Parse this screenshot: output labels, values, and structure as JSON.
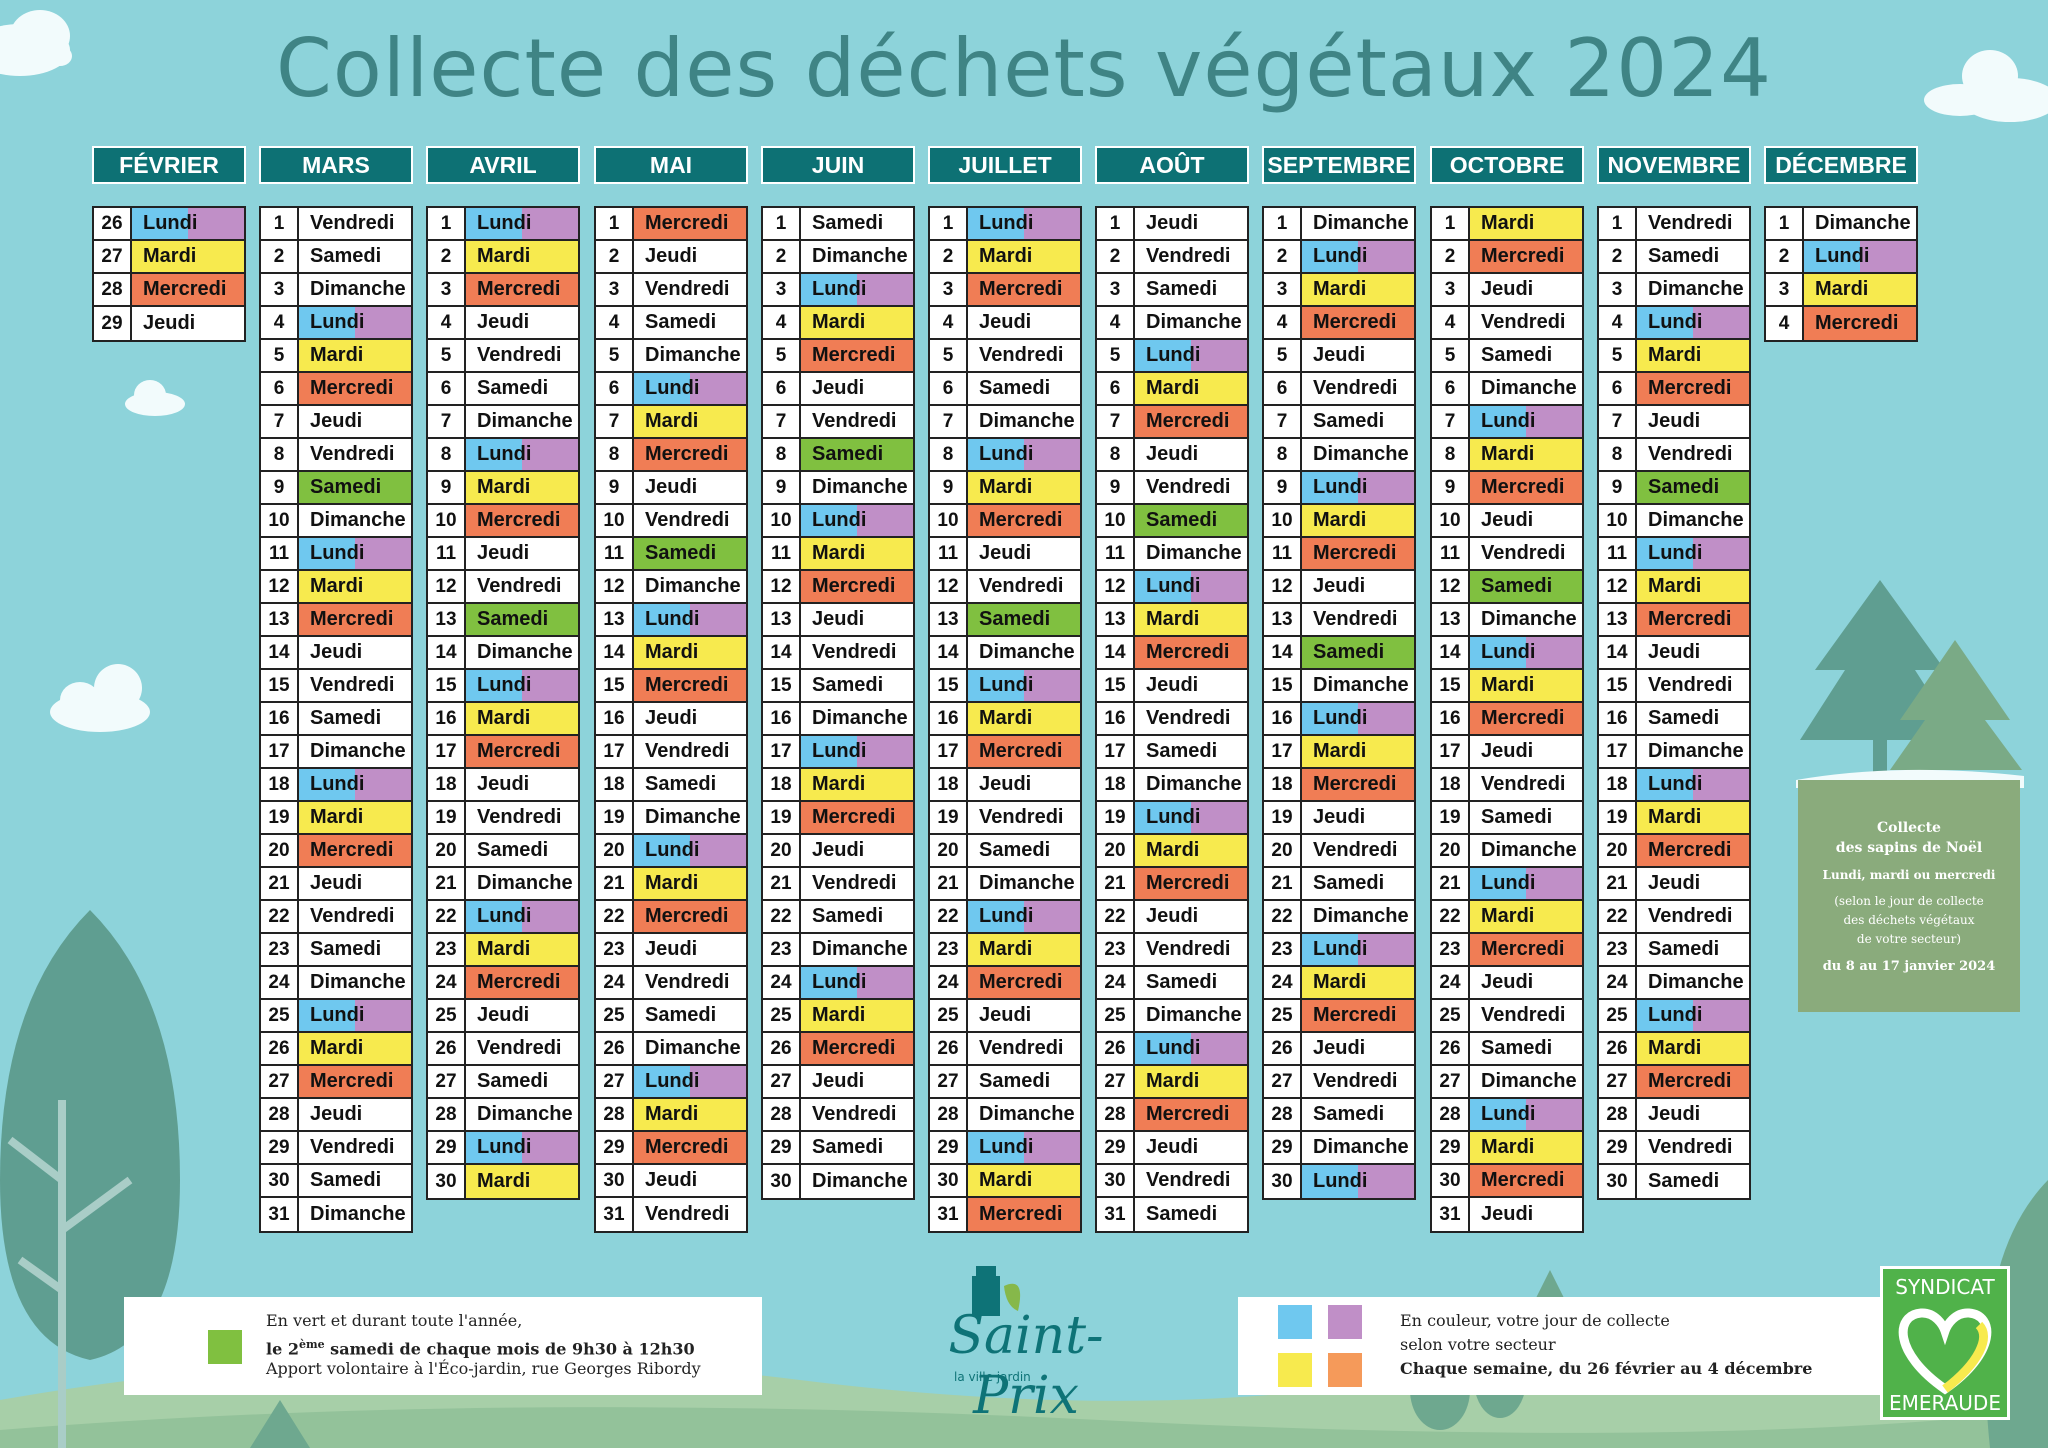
{
  "title": "Collecte des déchets végétaux 2024",
  "colors": {
    "background": "#8dd3da",
    "header": "#0d7174",
    "lundi_left": "#6fc8ef",
    "lundi_right": "#c08fc7",
    "mardi": "#f7ea4e",
    "mercredi": "#f07d55",
    "samedi": "#80c040"
  },
  "months": [
    {
      "name": "FÉVRIER",
      "days": [
        [
          26,
          "Lundi"
        ],
        [
          27,
          "Mardi"
        ],
        [
          28,
          "Mercredi"
        ],
        [
          29,
          "Jeudi"
        ]
      ]
    },
    {
      "name": "MARS",
      "days": [
        [
          1,
          "Vendredi"
        ],
        [
          2,
          "Samedi"
        ],
        [
          3,
          "Dimanche"
        ],
        [
          4,
          "Lundi"
        ],
        [
          5,
          "Mardi"
        ],
        [
          6,
          "Mercredi"
        ],
        [
          7,
          "Jeudi"
        ],
        [
          8,
          "Vendredi"
        ],
        [
          9,
          "Samedi",
          "green"
        ],
        [
          10,
          "Dimanche"
        ],
        [
          11,
          "Lundi"
        ],
        [
          12,
          "Mardi"
        ],
        [
          13,
          "Mercredi"
        ],
        [
          14,
          "Jeudi"
        ],
        [
          15,
          "Vendredi"
        ],
        [
          16,
          "Samedi"
        ],
        [
          17,
          "Dimanche"
        ],
        [
          18,
          "Lundi"
        ],
        [
          19,
          "Mardi"
        ],
        [
          20,
          "Mercredi"
        ],
        [
          21,
          "Jeudi"
        ],
        [
          22,
          "Vendredi"
        ],
        [
          23,
          "Samedi"
        ],
        [
          24,
          "Dimanche"
        ],
        [
          25,
          "Lundi"
        ],
        [
          26,
          "Mardi"
        ],
        [
          27,
          "Mercredi"
        ],
        [
          28,
          "Jeudi"
        ],
        [
          29,
          "Vendredi"
        ],
        [
          30,
          "Samedi"
        ],
        [
          31,
          "Dimanche"
        ]
      ]
    },
    {
      "name": "AVRIL",
      "days": [
        [
          1,
          "Lundi"
        ],
        [
          2,
          "Mardi"
        ],
        [
          3,
          "Mercredi"
        ],
        [
          4,
          "Jeudi"
        ],
        [
          5,
          "Vendredi"
        ],
        [
          6,
          "Samedi"
        ],
        [
          7,
          "Dimanche"
        ],
        [
          8,
          "Lundi"
        ],
        [
          9,
          "Mardi"
        ],
        [
          10,
          "Mercredi"
        ],
        [
          11,
          "Jeudi"
        ],
        [
          12,
          "Vendredi"
        ],
        [
          13,
          "Samedi",
          "green"
        ],
        [
          14,
          "Dimanche"
        ],
        [
          15,
          "Lundi"
        ],
        [
          16,
          "Mardi"
        ],
        [
          17,
          "Mercredi"
        ],
        [
          18,
          "Jeudi"
        ],
        [
          19,
          "Vendredi"
        ],
        [
          20,
          "Samedi"
        ],
        [
          21,
          "Dimanche"
        ],
        [
          22,
          "Lundi"
        ],
        [
          23,
          "Mardi"
        ],
        [
          24,
          "Mercredi"
        ],
        [
          25,
          "Jeudi"
        ],
        [
          26,
          "Vendredi"
        ],
        [
          27,
          "Samedi"
        ],
        [
          28,
          "Dimanche"
        ],
        [
          29,
          "Lundi"
        ],
        [
          30,
          "Mardi"
        ]
      ]
    },
    {
      "name": "MAI",
      "days": [
        [
          1,
          "Mercredi"
        ],
        [
          2,
          "Jeudi"
        ],
        [
          3,
          "Vendredi"
        ],
        [
          4,
          "Samedi"
        ],
        [
          5,
          "Dimanche"
        ],
        [
          6,
          "Lundi"
        ],
        [
          7,
          "Mardi"
        ],
        [
          8,
          "Mercredi"
        ],
        [
          9,
          "Jeudi"
        ],
        [
          10,
          "Vendredi"
        ],
        [
          11,
          "Samedi",
          "green"
        ],
        [
          12,
          "Dimanche"
        ],
        [
          13,
          "Lundi"
        ],
        [
          14,
          "Mardi"
        ],
        [
          15,
          "Mercredi"
        ],
        [
          16,
          "Jeudi"
        ],
        [
          17,
          "Vendredi"
        ],
        [
          18,
          "Samedi"
        ],
        [
          19,
          "Dimanche"
        ],
        [
          20,
          "Lundi"
        ],
        [
          21,
          "Mardi"
        ],
        [
          22,
          "Mercredi"
        ],
        [
          23,
          "Jeudi"
        ],
        [
          24,
          "Vendredi"
        ],
        [
          25,
          "Samedi"
        ],
        [
          26,
          "Dimanche"
        ],
        [
          27,
          "Lundi"
        ],
        [
          28,
          "Mardi"
        ],
        [
          29,
          "Mercredi"
        ],
        [
          30,
          "Jeudi"
        ],
        [
          31,
          "Vendredi"
        ]
      ]
    },
    {
      "name": "JUIN",
      "days": [
        [
          1,
          "Samedi"
        ],
        [
          2,
          "Dimanche"
        ],
        [
          3,
          "Lundi"
        ],
        [
          4,
          "Mardi"
        ],
        [
          5,
          "Mercredi"
        ],
        [
          6,
          "Jeudi"
        ],
        [
          7,
          "Vendredi"
        ],
        [
          8,
          "Samedi",
          "green"
        ],
        [
          9,
          "Dimanche"
        ],
        [
          10,
          "Lundi"
        ],
        [
          11,
          "Mardi"
        ],
        [
          12,
          "Mercredi"
        ],
        [
          13,
          "Jeudi"
        ],
        [
          14,
          "Vendredi"
        ],
        [
          15,
          "Samedi"
        ],
        [
          16,
          "Dimanche"
        ],
        [
          17,
          "Lundi"
        ],
        [
          18,
          "Mardi"
        ],
        [
          19,
          "Mercredi"
        ],
        [
          20,
          "Jeudi"
        ],
        [
          21,
          "Vendredi"
        ],
        [
          22,
          "Samedi"
        ],
        [
          23,
          "Dimanche"
        ],
        [
          24,
          "Lundi"
        ],
        [
          25,
          "Mardi"
        ],
        [
          26,
          "Mercredi"
        ],
        [
          27,
          "Jeudi"
        ],
        [
          28,
          "Vendredi"
        ],
        [
          29,
          "Samedi"
        ],
        [
          30,
          "Dimanche"
        ]
      ]
    },
    {
      "name": "JUILLET",
      "days": [
        [
          1,
          "Lundi"
        ],
        [
          2,
          "Mardi"
        ],
        [
          3,
          "Mercredi"
        ],
        [
          4,
          "Jeudi"
        ],
        [
          5,
          "Vendredi"
        ],
        [
          6,
          "Samedi"
        ],
        [
          7,
          "Dimanche"
        ],
        [
          8,
          "Lundi"
        ],
        [
          9,
          "Mardi"
        ],
        [
          10,
          "Mercredi"
        ],
        [
          11,
          "Jeudi"
        ],
        [
          12,
          "Vendredi"
        ],
        [
          13,
          "Samedi",
          "green"
        ],
        [
          14,
          "Dimanche"
        ],
        [
          15,
          "Lundi"
        ],
        [
          16,
          "Mardi"
        ],
        [
          17,
          "Mercredi"
        ],
        [
          18,
          "Jeudi"
        ],
        [
          19,
          "Vendredi"
        ],
        [
          20,
          "Samedi"
        ],
        [
          21,
          "Dimanche"
        ],
        [
          22,
          "Lundi"
        ],
        [
          23,
          "Mardi"
        ],
        [
          24,
          "Mercredi"
        ],
        [
          25,
          "Jeudi"
        ],
        [
          26,
          "Vendredi"
        ],
        [
          27,
          "Samedi"
        ],
        [
          28,
          "Dimanche"
        ],
        [
          29,
          "Lundi"
        ],
        [
          30,
          "Mardi"
        ],
        [
          31,
          "Mercredi"
        ]
      ]
    },
    {
      "name": "AOÛT",
      "days": [
        [
          1,
          "Jeudi"
        ],
        [
          2,
          "Vendredi"
        ],
        [
          3,
          "Samedi"
        ],
        [
          4,
          "Dimanche"
        ],
        [
          5,
          "Lundi"
        ],
        [
          6,
          "Mardi"
        ],
        [
          7,
          "Mercredi"
        ],
        [
          8,
          "Jeudi"
        ],
        [
          9,
          "Vendredi"
        ],
        [
          10,
          "Samedi",
          "green"
        ],
        [
          11,
          "Dimanche"
        ],
        [
          12,
          "Lundi"
        ],
        [
          13,
          "Mardi"
        ],
        [
          14,
          "Mercredi"
        ],
        [
          15,
          "Jeudi"
        ],
        [
          16,
          "Vendredi"
        ],
        [
          17,
          "Samedi"
        ],
        [
          18,
          "Dimanche"
        ],
        [
          19,
          "Lundi"
        ],
        [
          20,
          "Mardi"
        ],
        [
          21,
          "Mercredi"
        ],
        [
          22,
          "Jeudi"
        ],
        [
          23,
          "Vendredi"
        ],
        [
          24,
          "Samedi"
        ],
        [
          25,
          "Dimanche"
        ],
        [
          26,
          "Lundi"
        ],
        [
          27,
          "Mardi"
        ],
        [
          28,
          "Mercredi"
        ],
        [
          29,
          "Jeudi"
        ],
        [
          30,
          "Vendredi"
        ],
        [
          31,
          "Samedi"
        ]
      ]
    },
    {
      "name": "SEPTEMBRE",
      "days": [
        [
          1,
          "Dimanche"
        ],
        [
          2,
          "Lundi"
        ],
        [
          3,
          "Mardi"
        ],
        [
          4,
          "Mercredi"
        ],
        [
          5,
          "Jeudi"
        ],
        [
          6,
          "Vendredi"
        ],
        [
          7,
          "Samedi"
        ],
        [
          8,
          "Dimanche"
        ],
        [
          9,
          "Lundi"
        ],
        [
          10,
          "Mardi"
        ],
        [
          11,
          "Mercredi"
        ],
        [
          12,
          "Jeudi"
        ],
        [
          13,
          "Vendredi"
        ],
        [
          14,
          "Samedi",
          "green"
        ],
        [
          15,
          "Dimanche"
        ],
        [
          16,
          "Lundi"
        ],
        [
          17,
          "Mardi"
        ],
        [
          18,
          "Mercredi"
        ],
        [
          19,
          "Jeudi"
        ],
        [
          20,
          "Vendredi"
        ],
        [
          21,
          "Samedi"
        ],
        [
          22,
          "Dimanche"
        ],
        [
          23,
          "Lundi"
        ],
        [
          24,
          "Mardi"
        ],
        [
          25,
          "Mercredi"
        ],
        [
          26,
          "Jeudi"
        ],
        [
          27,
          "Vendredi"
        ],
        [
          28,
          "Samedi"
        ],
        [
          29,
          "Dimanche"
        ],
        [
          30,
          "Lundi"
        ]
      ]
    },
    {
      "name": "OCTOBRE",
      "days": [
        [
          1,
          "Mardi"
        ],
        [
          2,
          "Mercredi"
        ],
        [
          3,
          "Jeudi"
        ],
        [
          4,
          "Vendredi"
        ],
        [
          5,
          "Samedi"
        ],
        [
          6,
          "Dimanche"
        ],
        [
          7,
          "Lundi"
        ],
        [
          8,
          "Mardi"
        ],
        [
          9,
          "Mercredi"
        ],
        [
          10,
          "Jeudi"
        ],
        [
          11,
          "Vendredi"
        ],
        [
          12,
          "Samedi",
          "green"
        ],
        [
          13,
          "Dimanche"
        ],
        [
          14,
          "Lundi"
        ],
        [
          15,
          "Mardi"
        ],
        [
          16,
          "Mercredi"
        ],
        [
          17,
          "Jeudi"
        ],
        [
          18,
          "Vendredi"
        ],
        [
          19,
          "Samedi"
        ],
        [
          20,
          "Dimanche"
        ],
        [
          21,
          "Lundi"
        ],
        [
          22,
          "Mardi"
        ],
        [
          23,
          "Mercredi"
        ],
        [
          24,
          "Jeudi"
        ],
        [
          25,
          "Vendredi"
        ],
        [
          26,
          "Samedi"
        ],
        [
          27,
          "Dimanche"
        ],
        [
          28,
          "Lundi"
        ],
        [
          29,
          "Mardi"
        ],
        [
          30,
          "Mercredi"
        ],
        [
          31,
          "Jeudi"
        ]
      ]
    },
    {
      "name": "NOVEMBRE",
      "days": [
        [
          1,
          "Vendredi"
        ],
        [
          2,
          "Samedi"
        ],
        [
          3,
          "Dimanche"
        ],
        [
          4,
          "Lundi"
        ],
        [
          5,
          "Mardi"
        ],
        [
          6,
          "Mercredi"
        ],
        [
          7,
          "Jeudi"
        ],
        [
          8,
          "Vendredi"
        ],
        [
          9,
          "Samedi",
          "green"
        ],
        [
          10,
          "Dimanche"
        ],
        [
          11,
          "Lundi"
        ],
        [
          12,
          "Mardi"
        ],
        [
          13,
          "Mercredi"
        ],
        [
          14,
          "Jeudi"
        ],
        [
          15,
          "Vendredi"
        ],
        [
          16,
          "Samedi"
        ],
        [
          17,
          "Dimanche"
        ],
        [
          18,
          "Lundi"
        ],
        [
          19,
          "Mardi"
        ],
        [
          20,
          "Mercredi"
        ],
        [
          21,
          "Jeudi"
        ],
        [
          22,
          "Vendredi"
        ],
        [
          23,
          "Samedi"
        ],
        [
          24,
          "Dimanche"
        ],
        [
          25,
          "Lundi"
        ],
        [
          26,
          "Mardi"
        ],
        [
          27,
          "Mercredi"
        ],
        [
          28,
          "Jeudi"
        ],
        [
          29,
          "Vendredi"
        ],
        [
          30,
          "Samedi"
        ]
      ]
    },
    {
      "name": "DÉCEMBRE",
      "days": [
        [
          1,
          "Dimanche"
        ],
        [
          2,
          "Lundi"
        ],
        [
          3,
          "Mardi"
        ],
        [
          4,
          "Mercredi"
        ]
      ]
    }
  ],
  "legend_left": {
    "line1": "En vert et durant toute l'année,",
    "line2_prefix": "le 2",
    "line2_sup": "ème",
    "line2_rest": " samedi de chaque mois de 9h30 à 12h30",
    "line3": "Apport volontaire à l'Éco-jardin, rue Georges Ribordy"
  },
  "legend_right": {
    "line1": "En couleur, votre jour de collecte",
    "line2": "selon votre secteur",
    "line3": "Chaque semaine, du 26 février au  4 décembre"
  },
  "sapins": {
    "line1": "Collecte",
    "line2": "des sapins de Noël",
    "line3": "Lundi, mardi ou mercredi",
    "line4": "(selon le jour de collecte",
    "line5": "des déchets végétaux",
    "line6": "de votre secteur)",
    "line7": "du 8 au 17 janvier 2024"
  },
  "logo_saint_prix": {
    "name": "Saint-Prix",
    "tagline": "la ville jardin"
  },
  "logo_syndicat": {
    "top": "SYNDICAT",
    "bottom": "EMERAUDE"
  }
}
